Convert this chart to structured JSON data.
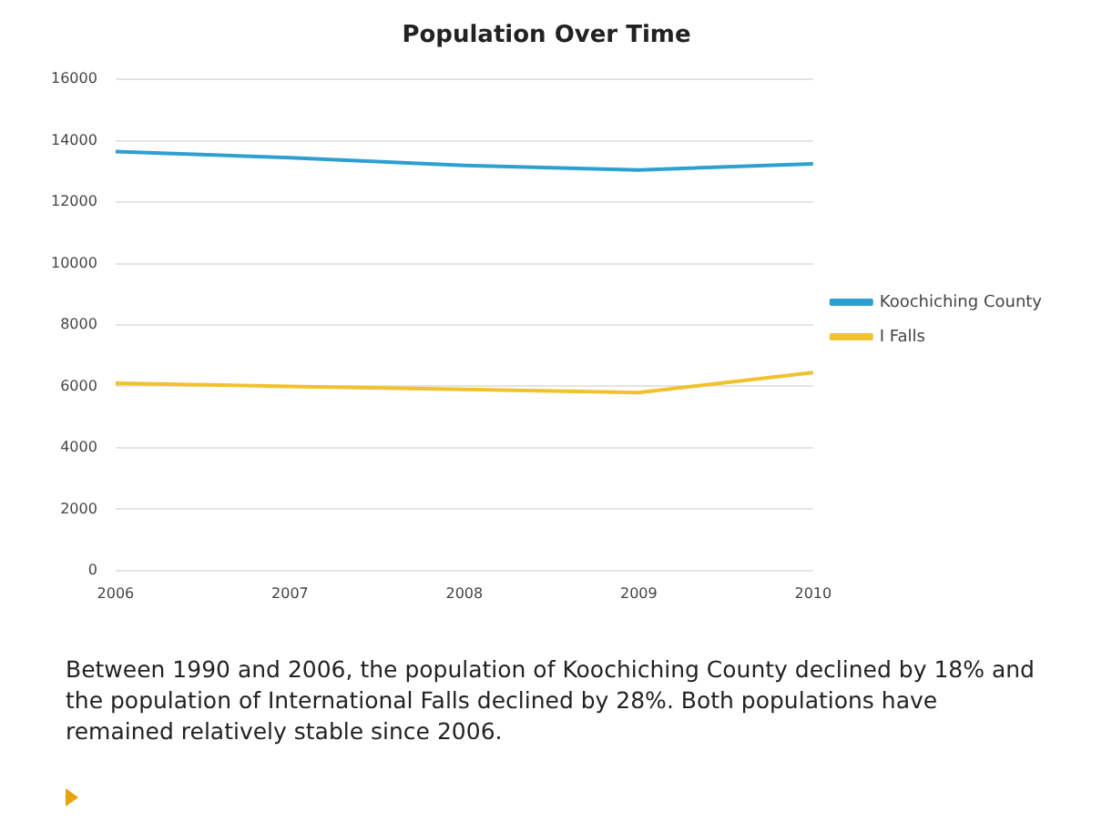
{
  "chart_data": {
    "type": "line",
    "title": "Population Over Time",
    "categories": [
      "2006",
      "2007",
      "2008",
      "2009",
      "2010"
    ],
    "series": [
      {
        "name": "Koochiching County",
        "color": "#2e9fd1",
        "values": [
          13650,
          13450,
          13200,
          13050,
          13250
        ]
      },
      {
        "name": "I Falls",
        "color": "#f2c12e",
        "values": [
          6100,
          6000,
          5900,
          5800,
          6450
        ]
      }
    ],
    "ylim": [
      0,
      16000
    ],
    "yticks": [
      0,
      2000,
      4000,
      6000,
      8000,
      10000,
      12000,
      14000,
      16000
    ],
    "grid": "y",
    "legend": "right",
    "marker": "none",
    "line_style": "solid",
    "annotations": [
      "Between 1990 and 2006, the population of Koochiching County declined by 18% and the population of International Falls declined by 28%.  Both populations have remained relatively stable since 2006."
    ]
  }
}
